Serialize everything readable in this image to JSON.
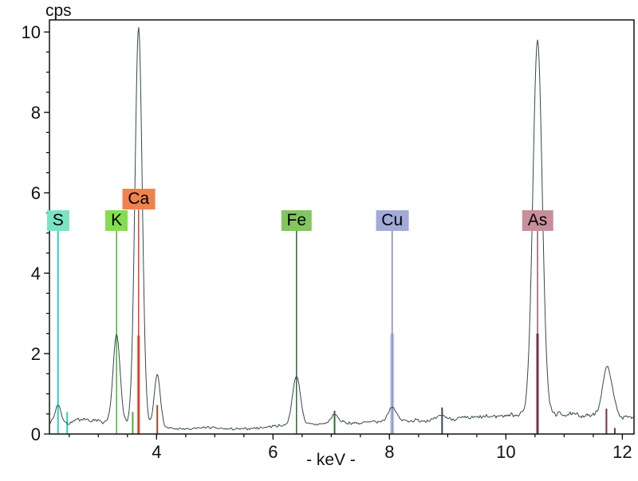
{
  "chart_data": {
    "type": "line",
    "title": "cps",
    "xlabel": "- keV -",
    "ylabel": "cps",
    "xlim": [
      2.16,
      12.2
    ],
    "ylim": [
      0,
      10.3
    ],
    "x_major_ticks": [
      4,
      6,
      8,
      10,
      12
    ],
    "x_minor_step": 0.5,
    "y_major_ticks": [
      0,
      2,
      4,
      6,
      8,
      10
    ],
    "y_minor_step": 0.5,
    "grid": false,
    "legend": false,
    "axis_color": "#111111",
    "spectrum_color": "#35484e",
    "noise": {
      "seed": 7,
      "base_amp": 0.022,
      "baseline_factor": 0.1
    },
    "baseline": [
      [
        2.16,
        0.3
      ],
      [
        2.34,
        0.26
      ],
      [
        2.5,
        0.27
      ],
      [
        2.63,
        0.34
      ],
      [
        2.74,
        0.4
      ],
      [
        2.84,
        0.32
      ],
      [
        2.95,
        0.37
      ],
      [
        3.07,
        0.27
      ],
      [
        3.25,
        0.28
      ],
      [
        3.45,
        0.26
      ],
      [
        3.75,
        0.22
      ],
      [
        4.05,
        0.18
      ],
      [
        4.3,
        0.13
      ],
      [
        4.6,
        0.12
      ],
      [
        4.85,
        0.17
      ],
      [
        5.1,
        0.13
      ],
      [
        5.45,
        0.12
      ],
      [
        5.8,
        0.16
      ],
      [
        6.1,
        0.21
      ],
      [
        6.4,
        0.22
      ],
      [
        6.75,
        0.24
      ],
      [
        7.1,
        0.29
      ],
      [
        7.45,
        0.27
      ],
      [
        7.8,
        0.3
      ],
      [
        8.2,
        0.33
      ],
      [
        8.6,
        0.34
      ],
      [
        9.0,
        0.37
      ],
      [
        9.4,
        0.4
      ],
      [
        9.8,
        0.44
      ],
      [
        10.2,
        0.49
      ],
      [
        10.55,
        0.5
      ],
      [
        10.9,
        0.5
      ],
      [
        11.25,
        0.47
      ],
      [
        11.55,
        0.45
      ],
      [
        11.9,
        0.4
      ],
      [
        12.2,
        0.42
      ]
    ],
    "peaks": [
      {
        "kev": 2.31,
        "h": 0.46,
        "s": 0.05,
        "name": "S Ka"
      },
      {
        "kev": 3.313,
        "h": 2.2,
        "s": 0.06,
        "name": "K Ka"
      },
      {
        "kev": 3.691,
        "h": 9.9,
        "s": 0.062,
        "name": "Ca Ka"
      },
      {
        "kev": 4.012,
        "h": 1.3,
        "s": 0.052,
        "name": "Ca Kb"
      },
      {
        "kev": 6.403,
        "h": 1.22,
        "s": 0.068,
        "name": "Fe Ka"
      },
      {
        "kev": 7.057,
        "h": 0.2,
        "s": 0.06,
        "name": "Fe Kb"
      },
      {
        "kev": 8.046,
        "h": 0.36,
        "s": 0.068,
        "name": "Cu Ka"
      },
      {
        "kev": 8.904,
        "h": 0.1,
        "s": 0.06,
        "name": "Cu Kb"
      },
      {
        "kev": 10.543,
        "h": 9.3,
        "s": 0.08,
        "name": "As Ka"
      },
      {
        "kev": 11.74,
        "h": 1.25,
        "s": 0.08,
        "name": "As Kb"
      },
      {
        "kev": 11.88,
        "h": 0.12,
        "s": 0.05,
        "name": "As Kb2"
      }
    ],
    "elements": [
      {
        "symbol": "S",
        "label_bg": "#79e3c4",
        "marker_color": "#2ed1c1",
        "label_level_cps": 5.05,
        "ka_kev": 2.307,
        "connector_width": 2,
        "bars": [
          {
            "kev": 2.464,
            "h": 0.55,
            "w": 2,
            "color": "#2ed1c1"
          }
        ]
      },
      {
        "symbol": "K",
        "label_bg": "#85dc50",
        "marker_color": "#4caf39",
        "label_level_cps": 5.05,
        "ka_kev": 3.313,
        "connector_width": 1.5,
        "bars": [
          {
            "kev": 3.59,
            "h": 0.55,
            "w": 2,
            "color": "#4caf39"
          }
        ]
      },
      {
        "symbol": "Ca",
        "label_bg": "#f0824e",
        "marker_color": "#e0432c",
        "label_level_cps": 5.58,
        "ka_kev": 3.691,
        "connector_width": 1.5,
        "bars": [
          {
            "kev": 3.691,
            "h": 2.45,
            "w": 3,
            "color": "#e0432c"
          },
          {
            "kev": 4.012,
            "h": 0.72,
            "w": 2,
            "color": "#a14b2b"
          }
        ]
      },
      {
        "symbol": "Fe",
        "label_bg": "#83c55f",
        "marker_color": "#2f6b35",
        "label_level_cps": 5.05,
        "ka_kev": 6.403,
        "connector_width": 1.5,
        "bars": [
          {
            "kev": 7.057,
            "h": 0.58,
            "w": 2,
            "color": "#2f6b35"
          }
        ]
      },
      {
        "symbol": "Cu",
        "label_bg": "#a2aad9",
        "marker_color": "#7e88bb",
        "label_level_cps": 5.05,
        "ka_kev": 8.046,
        "connector_width": 1.5,
        "bars": [
          {
            "kev": 8.046,
            "h": 2.5,
            "w": 5,
            "color": "rgba(144,154,212,0.55)"
          },
          {
            "kev": 8.904,
            "h": 0.66,
            "w": 2,
            "color": "#3b4467"
          }
        ]
      },
      {
        "symbol": "As",
        "label_bg": "#c88e9a",
        "marker_color": "#7b2f40",
        "label_level_cps": 5.05,
        "ka_kev": 10.543,
        "connector_width": 1.2,
        "bars": [
          {
            "kev": 10.543,
            "h": 2.5,
            "w": 3,
            "color": "#7b2f40"
          },
          {
            "kev": 11.726,
            "h": 0.63,
            "w": 2,
            "color": "#7b2f40"
          },
          {
            "kev": 11.87,
            "h": 0.15,
            "w": 2,
            "color": "#7b2f40"
          }
        ]
      }
    ]
  }
}
